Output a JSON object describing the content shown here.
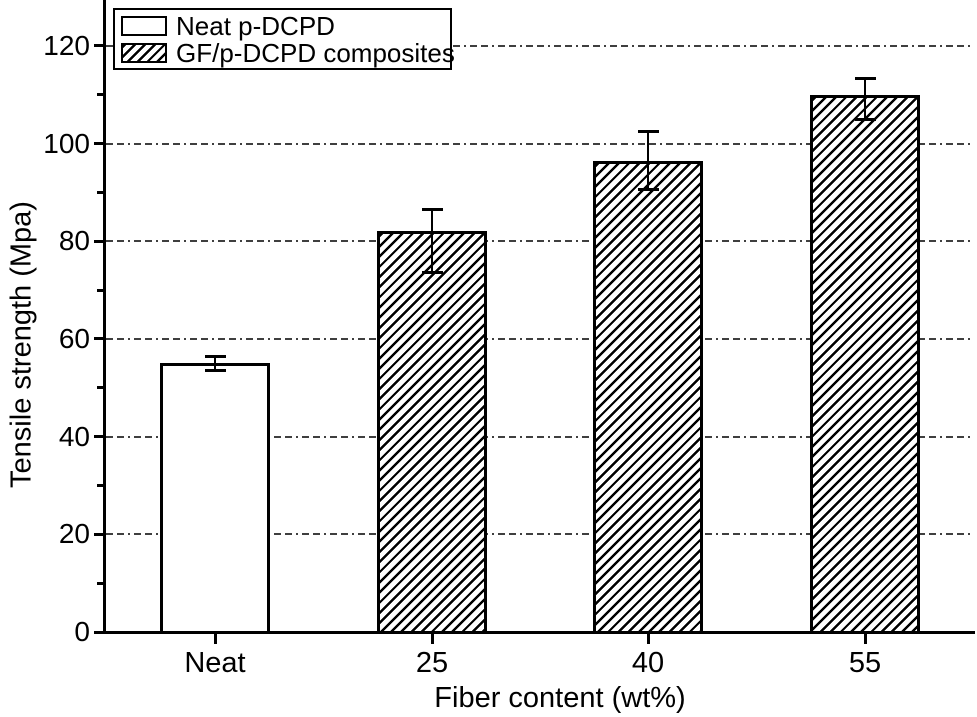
{
  "figure": {
    "background": "#ffffff",
    "axis_color": "#000000",
    "gridline_color": "#3f3f3f"
  },
  "legend": {
    "position": "top-left",
    "items": [
      {
        "label": "Neat p-DCPD",
        "swatch": "plain"
      },
      {
        "label": "GF/p-DCPD composites",
        "swatch": "hatched"
      }
    ]
  },
  "chart_data": {
    "type": "bar",
    "title": "",
    "xlabel": "Fiber content (wt%)",
    "ylabel": "Tensile strength (Mpa)",
    "categories": [
      "Neat",
      "25",
      "40",
      "55"
    ],
    "series": [
      {
        "name": "Neat p-DCPD",
        "style": "plain",
        "values": [
          55,
          null,
          null,
          null
        ]
      },
      {
        "name": "GF/p-DCPD composites",
        "style": "hatched",
        "values": [
          null,
          82,
          96.5,
          110
        ]
      }
    ],
    "bars": [
      {
        "category": "Neat",
        "value": 55,
        "error_high": 56.5,
        "error_low": 53.5,
        "style": "plain"
      },
      {
        "category": "25",
        "value": 82,
        "error_high": 86.5,
        "error_low": 73.5,
        "style": "hatched"
      },
      {
        "category": "40",
        "value": 96.5,
        "error_high": 102.5,
        "error_low": 90.5,
        "style": "hatched"
      },
      {
        "category": "55",
        "value": 110,
        "error_high": 113.5,
        "error_low": 105,
        "style": "hatched"
      }
    ],
    "y_axis": {
      "min": 0,
      "max": 130,
      "major_ticks": [
        0,
        20,
        40,
        60,
        80,
        100,
        120
      ],
      "minor_ticks": [
        10,
        30,
        50,
        70,
        90,
        110
      ],
      "grid_values": [
        20,
        40,
        60,
        80,
        100,
        120
      ],
      "grid_style": "dash-dot"
    },
    "grid": true,
    "legend_position": "top-left"
  }
}
